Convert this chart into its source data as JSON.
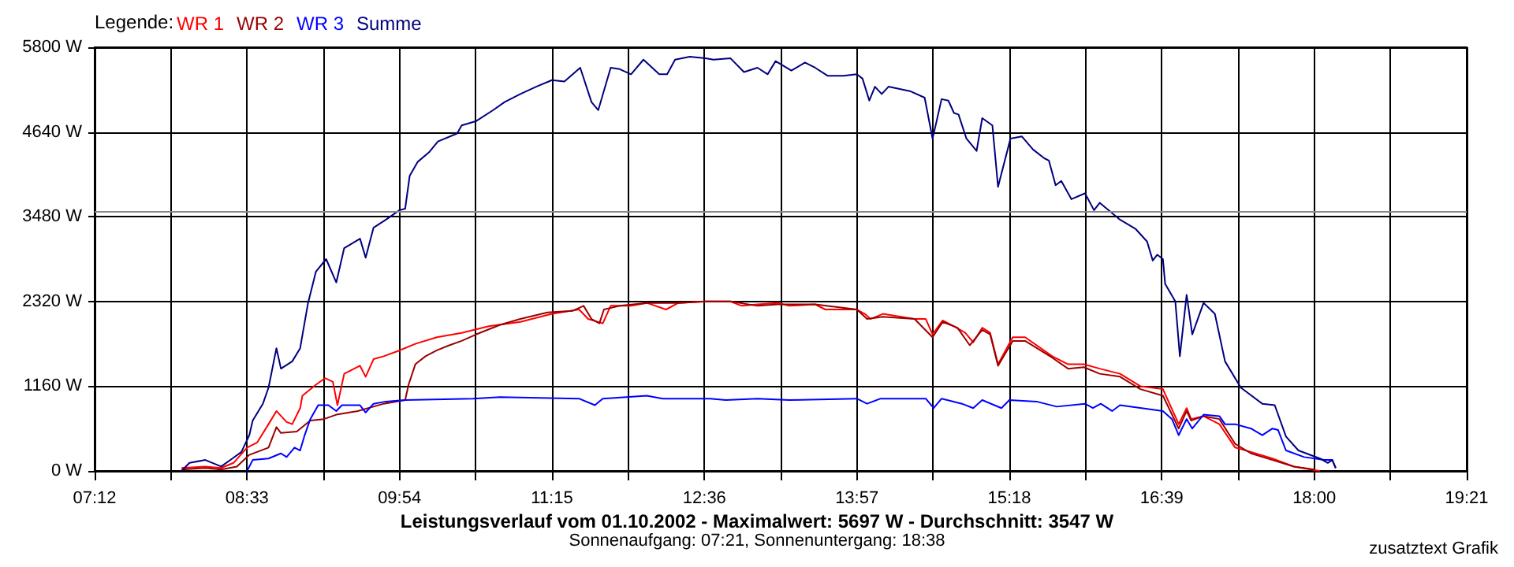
{
  "chart_data": {
    "type": "line",
    "title": "Leistungsverlauf vom 01.10.2002 - Maximalwert: 5697 W - Durchschnitt: 3547 W",
    "subtitle": "Sonnenaufgang: 07:21, Sonnenuntergang: 18:38",
    "legend_title": "Legende:",
    "annotations": [
      "zusatztext Grafik"
    ],
    "xlim": [
      7.2,
      19.35
    ],
    "xticks": [
      {
        "value": 7.2,
        "label": "07:12"
      },
      {
        "value": 7.875,
        "label": null
      },
      {
        "value": 8.55,
        "label": "08:33"
      },
      {
        "value": 9.225,
        "label": null
      },
      {
        "value": 9.9,
        "label": "09:54"
      },
      {
        "value": 10.575,
        "label": null
      },
      {
        "value": 11.25,
        "label": "11:15"
      },
      {
        "value": 11.925,
        "label": null
      },
      {
        "value": 12.6,
        "label": "12:36"
      },
      {
        "value": 13.275,
        "label": null
      },
      {
        "value": 13.95,
        "label": "13:57"
      },
      {
        "value": 14.625,
        "label": null
      },
      {
        "value": 15.3,
        "label": "15:18"
      },
      {
        "value": 15.975,
        "label": null
      },
      {
        "value": 16.65,
        "label": "16:39"
      },
      {
        "value": 17.325,
        "label": null
      },
      {
        "value": 18.0,
        "label": "18:00"
      },
      {
        "value": 18.675,
        "label": null
      },
      {
        "value": 19.35,
        "label": "19:21"
      }
    ],
    "ylim": [
      0,
      5800
    ],
    "yticks": [
      {
        "value": 0,
        "label": "0 W"
      },
      {
        "value": 1160,
        "label": "1160 W"
      },
      {
        "value": 2320,
        "label": "2320 W"
      },
      {
        "value": 3480,
        "label": "3480 W"
      },
      {
        "value": 4640,
        "label": "4640 W"
      },
      {
        "value": 5800,
        "label": "5800 W"
      }
    ],
    "grid": true,
    "legend": "top left",
    "marker": "none",
    "line_style": "solid",
    "ref_lines": [
      {
        "axis": "y",
        "value": 3547,
        "color": "#888888"
      }
    ],
    "series": [
      {
        "name": "WR 1",
        "color": "#ff0000",
        "x": [
          7.97,
          8.18,
          8.32,
          8.43,
          8.55,
          8.64,
          8.74,
          8.81,
          8.9,
          8.95,
          9.02,
          9.04,
          9.16,
          9.24,
          9.31,
          9.35,
          9.41,
          9.55,
          9.6,
          9.67,
          9.76,
          9.9,
          10.04,
          10.23,
          10.45,
          10.69,
          10.97,
          11.25,
          11.49,
          11.57,
          11.7,
          11.77,
          11.95,
          12.09,
          12.26,
          12.37,
          12.61,
          12.83,
          12.93,
          13.07,
          13.25,
          13.35,
          13.58,
          13.67,
          13.95,
          14.02,
          14.07,
          14.18,
          14.46,
          14.56,
          14.62,
          14.71,
          14.81,
          14.91,
          14.98,
          15.06,
          15.13,
          15.2,
          15.33,
          15.44,
          15.68,
          15.82,
          15.96,
          16.1,
          16.28,
          16.46,
          16.66,
          16.8,
          16.87,
          16.91,
          17.02,
          17.16,
          17.3,
          17.44,
          17.63,
          17.82,
          18.05
        ],
        "values": [
          40,
          60,
          40,
          110,
          320,
          390,
          640,
          820,
          670,
          640,
          860,
          1030,
          1180,
          1270,
          1220,
          900,
          1330,
          1440,
          1290,
          1530,
          1570,
          1650,
          1740,
          1830,
          1890,
          1980,
          2040,
          2150,
          2210,
          2080,
          2020,
          2260,
          2260,
          2300,
          2210,
          2300,
          2320,
          2320,
          2260,
          2280,
          2300,
          2260,
          2280,
          2210,
          2210,
          2150,
          2080,
          2150,
          2080,
          2080,
          1870,
          2060,
          1980,
          1890,
          1760,
          1960,
          1890,
          1460,
          1830,
          1830,
          1570,
          1460,
          1460,
          1400,
          1330,
          1160,
          1120,
          640,
          860,
          710,
          750,
          640,
          320,
          260,
          170,
          60,
          0
        ]
      },
      {
        "name": "WR 2",
        "color": "#990000",
        "x": [
          7.97,
          8.18,
          8.32,
          8.46,
          8.57,
          8.74,
          8.81,
          8.85,
          8.99,
          9.11,
          9.23,
          9.34,
          9.53,
          9.76,
          9.95,
          9.98,
          10.04,
          10.13,
          10.23,
          10.34,
          10.45,
          10.58,
          10.79,
          10.97,
          11.21,
          11.43,
          11.53,
          11.6,
          11.67,
          11.71,
          11.85,
          12.09,
          12.37,
          12.61,
          12.83,
          13.07,
          13.25,
          13.58,
          13.95,
          14.04,
          14.18,
          14.46,
          14.62,
          14.71,
          14.84,
          14.95,
          15.06,
          15.13,
          15.2,
          15.33,
          15.44,
          15.68,
          15.82,
          15.96,
          16.1,
          16.28,
          16.46,
          16.66,
          16.8,
          16.87,
          16.91,
          17.02,
          17.16,
          17.3,
          17.44,
          17.63,
          17.82,
          18.0
        ],
        "values": [
          20,
          40,
          20,
          60,
          220,
          320,
          600,
          520,
          540,
          690,
          710,
          770,
          820,
          920,
          970,
          1180,
          1460,
          1570,
          1650,
          1720,
          1780,
          1870,
          2000,
          2080,
          2170,
          2190,
          2260,
          2080,
          2020,
          2210,
          2260,
          2300,
          2300,
          2320,
          2320,
          2260,
          2280,
          2280,
          2210,
          2080,
          2110,
          2080,
          1830,
          2040,
          1960,
          1720,
          1930,
          1870,
          1440,
          1780,
          1780,
          1550,
          1400,
          1420,
          1330,
          1290,
          1120,
          1030,
          580,
          820,
          690,
          750,
          710,
          370,
          240,
          150,
          60,
          20
        ]
      },
      {
        "name": "WR 3",
        "color": "#0000ff",
        "x": [
          8.55,
          8.6,
          8.74,
          8.85,
          8.9,
          8.97,
          9.02,
          9.06,
          9.11,
          9.18,
          9.27,
          9.34,
          9.39,
          9.55,
          9.6,
          9.67,
          9.78,
          9.95,
          10.55,
          10.79,
          11.49,
          11.63,
          11.7,
          12.09,
          12.23,
          12.65,
          12.79,
          13.07,
          13.35,
          13.95,
          14.04,
          14.16,
          14.56,
          14.63,
          14.7,
          14.88,
          14.98,
          15.06,
          15.23,
          15.3,
          15.54,
          15.72,
          15.97,
          16.04,
          16.11,
          16.21,
          16.28,
          16.56,
          16.66,
          16.74,
          16.8,
          16.87,
          16.92,
          17.02,
          17.16,
          17.21,
          17.3,
          17.44,
          17.54,
          17.63,
          17.68,
          17.75,
          17.91,
          18.09,
          18.16,
          18.19
        ],
        "values": [
          0,
          150,
          170,
          240,
          190,
          320,
          280,
          490,
          710,
          900,
          900,
          820,
          900,
          900,
          800,
          920,
          950,
          970,
          990,
          1010,
          990,
          900,
          990,
          1030,
          990,
          990,
          970,
          990,
          970,
          990,
          920,
          990,
          990,
          860,
          990,
          920,
          860,
          970,
          860,
          970,
          950,
          880,
          920,
          860,
          920,
          820,
          900,
          840,
          820,
          710,
          490,
          710,
          580,
          770,
          750,
          640,
          640,
          580,
          490,
          580,
          560,
          280,
          190,
          150,
          150,
          40
        ]
      },
      {
        "name": "Summe",
        "color": "#000080",
        "x": [
          7.97,
          8.04,
          8.18,
          8.32,
          8.42,
          8.5,
          8.57,
          8.6,
          8.69,
          8.74,
          8.81,
          8.85,
          8.95,
          9.02,
          9.09,
          9.16,
          9.25,
          9.34,
          9.41,
          9.55,
          9.6,
          9.67,
          9.78,
          9.9,
          9.95,
          9.99,
          10.06,
          10.16,
          10.24,
          10.41,
          10.45,
          10.58,
          10.73,
          10.83,
          10.97,
          11.11,
          11.25,
          11.36,
          11.5,
          11.6,
          11.66,
          11.77,
          11.85,
          11.95,
          12.06,
          12.2,
          12.27,
          12.34,
          12.47,
          12.61,
          12.68,
          12.83,
          12.95,
          13.07,
          13.16,
          13.23,
          13.37,
          13.49,
          13.58,
          13.69,
          13.83,
          13.95,
          14.0,
          14.06,
          14.11,
          14.17,
          14.23,
          14.42,
          14.55,
          14.62,
          14.64,
          14.7,
          14.76,
          14.81,
          14.85,
          14.92,
          15.01,
          15.06,
          15.15,
          15.2,
          15.31,
          15.41,
          15.51,
          15.61,
          15.65,
          15.71,
          15.76,
          15.85,
          15.97,
          16.05,
          16.1,
          16.28,
          16.42,
          16.52,
          16.57,
          16.61,
          16.66,
          16.68,
          16.77,
          16.81,
          16.87,
          16.92,
          17.02,
          17.12,
          17.21,
          17.35,
          17.54,
          17.65,
          17.75,
          17.86,
          18.05,
          18.12,
          18.16,
          18.19
        ],
        "values": [
          0,
          110,
          150,
          60,
          170,
          260,
          490,
          690,
          920,
          1140,
          1680,
          1400,
          1500,
          1680,
          2300,
          2730,
          2900,
          2580,
          3050,
          3180,
          2920,
          3330,
          3440,
          3570,
          3590,
          4040,
          4230,
          4360,
          4510,
          4620,
          4730,
          4790,
          4940,
          5050,
          5160,
          5260,
          5350,
          5330,
          5520,
          5050,
          4940,
          5520,
          5500,
          5430,
          5630,
          5430,
          5430,
          5630,
          5670,
          5650,
          5630,
          5650,
          5460,
          5520,
          5430,
          5610,
          5480,
          5590,
          5520,
          5410,
          5410,
          5430,
          5370,
          5070,
          5260,
          5160,
          5260,
          5200,
          5110,
          4550,
          4680,
          5090,
          5070,
          4900,
          4880,
          4550,
          4380,
          4830,
          4730,
          3890,
          4550,
          4580,
          4400,
          4280,
          4250,
          3910,
          3970,
          3720,
          3800,
          3570,
          3670,
          3440,
          3310,
          3140,
          2880,
          2960,
          2900,
          2560,
          2320,
          1570,
          2410,
          1870,
          2300,
          2150,
          1500,
          1140,
          920,
          900,
          470,
          280,
          170,
          110,
          150,
          40
        ]
      }
    ]
  }
}
